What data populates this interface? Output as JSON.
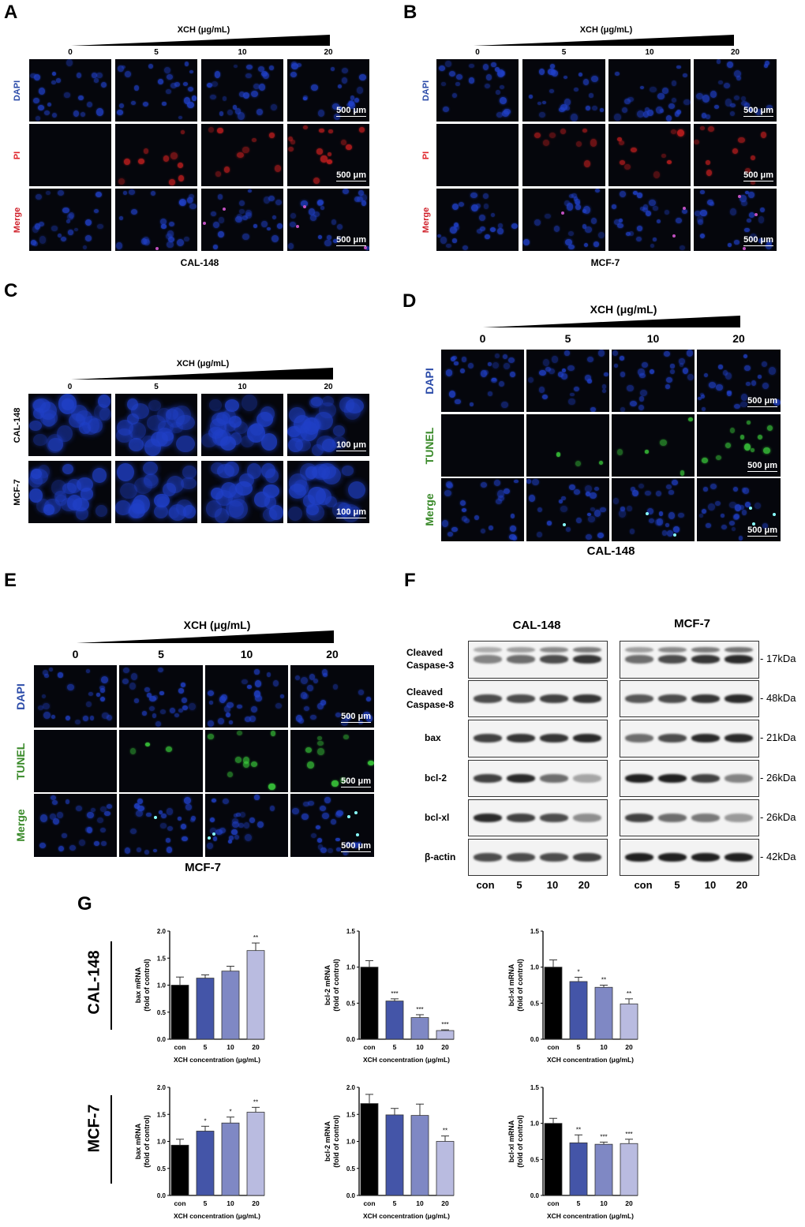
{
  "panels": {
    "A": {
      "label": "A",
      "title": "XCH (μg/mL)",
      "doses": [
        "0",
        "5",
        "10",
        "20"
      ],
      "rows": [
        "DAPI",
        "PI",
        "Merge"
      ],
      "scale": "500 μm",
      "caption": "CAL-148"
    },
    "B": {
      "label": "B",
      "title": "XCH (μg/mL)",
      "doses": [
        "0",
        "5",
        "10",
        "20"
      ],
      "rows": [
        "DAPI",
        "PI",
        "Merge"
      ],
      "scale": "500 μm",
      "caption": "MCF-7"
    },
    "C": {
      "label": "C",
      "title": "XCH (μg/mL)",
      "doses": [
        "0",
        "5",
        "10",
        "20"
      ],
      "rows": [
        "CAL-148",
        "MCF-7"
      ],
      "scale": "100 μm"
    },
    "D": {
      "label": "D",
      "title": "XCH (μg/mL)",
      "doses": [
        "0",
        "5",
        "10",
        "20"
      ],
      "rows": [
        "DAPI",
        "TUNEL",
        "Merge"
      ],
      "scale": "500 μm",
      "caption": "CAL-148"
    },
    "E": {
      "label": "E",
      "title": "XCH (μg/mL)",
      "doses": [
        "0",
        "5",
        "10",
        "20"
      ],
      "rows": [
        "DAPI",
        "TUNEL",
        "Merge"
      ],
      "scale": "500 μm",
      "caption": "MCF-7"
    },
    "F": {
      "label": "F",
      "cell_lines": [
        "CAL-148",
        "MCF-7"
      ],
      "proteins": [
        {
          "name": "Cleaved\nCaspase-3",
          "kda": "- 17kDa"
        },
        {
          "name": "Cleaved\nCaspase-8",
          "kda": "- 48kDa"
        },
        {
          "name": "bax",
          "kda": "- 21kDa"
        },
        {
          "name": "bcl-2",
          "kda": "- 26kDa"
        },
        {
          "name": "bcl-xl",
          "kda": "- 26kDa"
        },
        {
          "name": "β-actin",
          "kda": "- 42kDa"
        }
      ],
      "lanes": [
        "con",
        "5",
        "10",
        "20"
      ]
    },
    "G": {
      "label": "G",
      "row_labels": [
        "CAL-148",
        "MCF-7"
      ]
    }
  },
  "colors": {
    "dapi": "#2a4aa8",
    "pi": "#e0242a",
    "tunel": "#3a8a2a",
    "bars": [
      "#000000",
      "#4455a8",
      "#7f88c4",
      "#b9bbe0"
    ]
  },
  "chart_data": [
    {
      "type": "bar",
      "cell_line": "CAL-148",
      "ylabel": [
        "bax mRNA",
        "(fold of control)"
      ],
      "xlabel": "XCH concentration (μg/mL)",
      "categories": [
        "con",
        "5",
        "10",
        "20"
      ],
      "values": [
        1.0,
        1.13,
        1.26,
        1.64
      ],
      "errors": [
        0.15,
        0.06,
        0.09,
        0.14
      ],
      "significance": [
        "",
        "",
        "",
        "**"
      ],
      "ylim": [
        0,
        2.0
      ],
      "yticks": [
        "0.0",
        "0.5",
        "1.0",
        "1.5",
        "2.0"
      ]
    },
    {
      "type": "bar",
      "cell_line": "CAL-148",
      "ylabel": [
        "bcl-2 mRNA",
        "(fold of control)"
      ],
      "xlabel": "XCH concentration (μg/mL)",
      "categories": [
        "con",
        "5",
        "10",
        "20"
      ],
      "values": [
        1.0,
        0.53,
        0.3,
        0.12
      ],
      "errors": [
        0.09,
        0.03,
        0.04,
        0.01
      ],
      "significance": [
        "",
        "***",
        "***",
        "***"
      ],
      "ylim": [
        0,
        1.5
      ],
      "yticks": [
        "0.0",
        "0.5",
        "1.0",
        "1.5"
      ]
    },
    {
      "type": "bar",
      "cell_line": "CAL-148",
      "ylabel": [
        "bcl-xl mRNA",
        "(fold of control)"
      ],
      "xlabel": "XCH concentration (μg/mL)",
      "categories": [
        "con",
        "5",
        "10",
        "20"
      ],
      "values": [
        1.0,
        0.8,
        0.72,
        0.49
      ],
      "errors": [
        0.1,
        0.06,
        0.03,
        0.07
      ],
      "significance": [
        "",
        "*",
        "**",
        "**"
      ],
      "ylim": [
        0,
        1.5
      ],
      "yticks": [
        "0.0",
        "0.5",
        "1.0",
        "1.5"
      ]
    },
    {
      "type": "bar",
      "cell_line": "MCF-7",
      "ylabel": [
        "bax mRNA",
        "(fold of control)"
      ],
      "xlabel": "XCH concentration (μg/mL)",
      "categories": [
        "con",
        "5",
        "10",
        "20"
      ],
      "values": [
        0.93,
        1.19,
        1.34,
        1.54
      ],
      "errors": [
        0.11,
        0.09,
        0.11,
        0.09
      ],
      "significance": [
        "",
        "*",
        "*",
        "**"
      ],
      "ylim": [
        0,
        2.0
      ],
      "yticks": [
        "0.0",
        "0.5",
        "1.0",
        "1.5",
        "2.0"
      ]
    },
    {
      "type": "bar",
      "cell_line": "MCF-7",
      "ylabel": [
        "bcl-2 mRNA",
        "(fold of control)"
      ],
      "xlabel": "XCH concentration (μg/mL)",
      "categories": [
        "con",
        "5",
        "10",
        "20"
      ],
      "values": [
        1.7,
        1.49,
        1.48,
        1.0
      ],
      "errors": [
        0.17,
        0.12,
        0.21,
        0.1
      ],
      "significance": [
        "",
        "",
        "",
        "**"
      ],
      "ylim": [
        0,
        2.0
      ],
      "yticks": [
        "0.0",
        "0.5",
        "1.0",
        "1.5",
        "2.0"
      ]
    },
    {
      "type": "bar",
      "cell_line": "MCF-7",
      "ylabel": [
        "bcl-xl mRNA",
        "(fold of control)"
      ],
      "xlabel": "XCH concentration (μg/mL)",
      "categories": [
        "con",
        "5",
        "10",
        "20"
      ],
      "values": [
        1.0,
        0.73,
        0.71,
        0.72
      ],
      "errors": [
        0.07,
        0.11,
        0.03,
        0.06
      ],
      "significance": [
        "",
        "**",
        "***",
        "***"
      ],
      "ylim": [
        0,
        1.5
      ],
      "yticks": [
        "0.0",
        "0.5",
        "1.0",
        "1.5"
      ]
    }
  ]
}
